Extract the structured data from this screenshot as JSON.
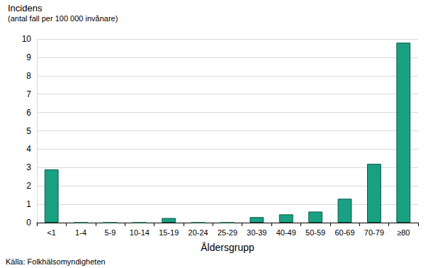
{
  "chart_data": {
    "type": "bar",
    "title": "Incidens",
    "subtitle": "(antal fall per 100 000 invånare)",
    "x_label": "Åldersgrupp",
    "annotations": [
      "Källa: Folkhälsomyndigheten"
    ],
    "categories": [
      "<1",
      "1-4",
      "5-9",
      "10-14",
      "15-19",
      "20-24",
      "25-29",
      "30-39",
      "40-49",
      "50-59",
      "60-69",
      "70-79",
      "≥80"
    ],
    "values": [
      2.9,
      0,
      0,
      0,
      0.25,
      0,
      0,
      0.3,
      0.45,
      0.6,
      1.3,
      3.2,
      9.8
    ],
    "color": "#19a082",
    "ylim": [
      0,
      10
    ],
    "yticks": [
      0,
      1,
      2,
      3,
      4,
      5,
      6,
      7,
      8,
      9,
      10
    ],
    "grid": true
  }
}
